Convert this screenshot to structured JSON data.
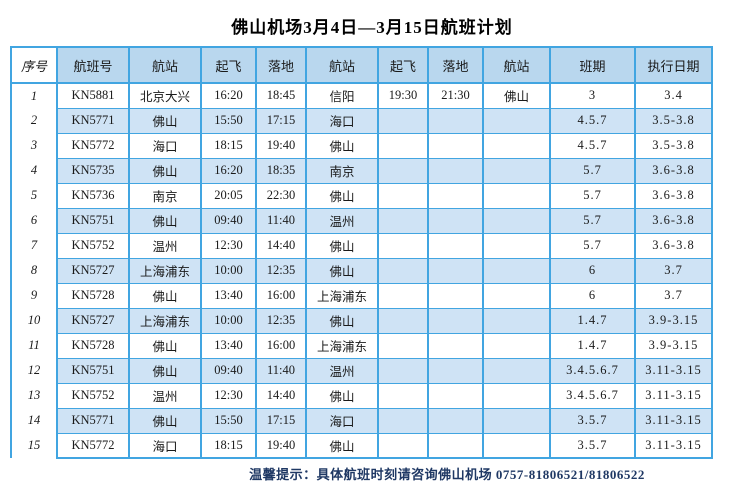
{
  "title": "佛山机场3月4日—3月15日航班计划",
  "footer": "温馨提示：具体航班时刻请咨询佛山机场 0757-81806521/81806522",
  "colors": {
    "border": "#41A5E1",
    "header_fill": "#B9D7EE",
    "band_fill": "#CFE3F5",
    "footer_text": "#1F3864",
    "title_text": "#000000"
  },
  "table": {
    "headers": [
      "序号",
      "航班号",
      "航站",
      "起飞",
      "落地",
      "航站",
      "起飞",
      "落地",
      "航站",
      "班期",
      "执行日期"
    ],
    "rows": [
      {
        "cells": [
          "1",
          "KN5881",
          "北京大兴",
          "16:20",
          "18:45",
          "信阳",
          "19:30",
          "21:30",
          "佛山",
          "3",
          "3.4"
        ]
      },
      {
        "cells": [
          "2",
          "KN5771",
          "佛山",
          "15:50",
          "17:15",
          "海口",
          "",
          "",
          "",
          "4.5.7",
          "3.5-3.8"
        ]
      },
      {
        "cells": [
          "3",
          "KN5772",
          "海口",
          "18:15",
          "19:40",
          "佛山",
          "",
          "",
          "",
          "4.5.7",
          "3.5-3.8"
        ]
      },
      {
        "cells": [
          "4",
          "KN5735",
          "佛山",
          "16:20",
          "18:35",
          "南京",
          "",
          "",
          "",
          "5.7",
          "3.6-3.8"
        ]
      },
      {
        "cells": [
          "5",
          "KN5736",
          "南京",
          "20:05",
          "22:30",
          "佛山",
          "",
          "",
          "",
          "5.7",
          "3.6-3.8"
        ]
      },
      {
        "cells": [
          "6",
          "KN5751",
          "佛山",
          "09:40",
          "11:40",
          "温州",
          "",
          "",
          "",
          "5.7",
          "3.6-3.8"
        ]
      },
      {
        "cells": [
          "7",
          "KN5752",
          "温州",
          "12:30",
          "14:40",
          "佛山",
          "",
          "",
          "",
          "5.7",
          "3.6-3.8"
        ]
      },
      {
        "cells": [
          "8",
          "KN5727",
          "上海浦东",
          "10:00",
          "12:35",
          "佛山",
          "",
          "",
          "",
          "6",
          "3.7"
        ]
      },
      {
        "cells": [
          "9",
          "KN5728",
          "佛山",
          "13:40",
          "16:00",
          "上海浦东",
          "",
          "",
          "",
          "6",
          "3.7"
        ]
      },
      {
        "cells": [
          "10",
          "KN5727",
          "上海浦东",
          "10:00",
          "12:35",
          "佛山",
          "",
          "",
          "",
          "1.4.7",
          "3.9-3.15"
        ]
      },
      {
        "cells": [
          "11",
          "KN5728",
          "佛山",
          "13:40",
          "16:00",
          "上海浦东",
          "",
          "",
          "",
          "1.4.7",
          "3.9-3.15"
        ]
      },
      {
        "cells": [
          "12",
          "KN5751",
          "佛山",
          "09:40",
          "11:40",
          "温州",
          "",
          "",
          "",
          "3.4.5.6.7",
          "3.11-3.15"
        ]
      },
      {
        "cells": [
          "13",
          "KN5752",
          "温州",
          "12:30",
          "14:40",
          "佛山",
          "",
          "",
          "",
          "3.4.5.6.7",
          "3.11-3.15"
        ]
      },
      {
        "cells": [
          "14",
          "KN5771",
          "佛山",
          "15:50",
          "17:15",
          "海口",
          "",
          "",
          "",
          "3.5.7",
          "3.11-3.15"
        ]
      },
      {
        "cells": [
          "15",
          "KN5772",
          "海口",
          "18:15",
          "19:40",
          "佛山",
          "",
          "",
          "",
          "3.5.7",
          "3.11-3.15"
        ]
      }
    ]
  }
}
